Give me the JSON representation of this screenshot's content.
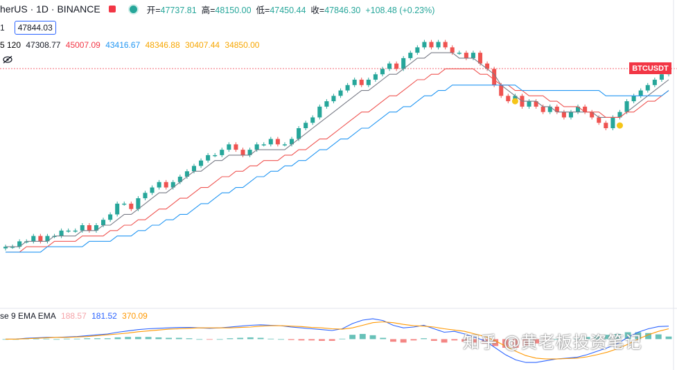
{
  "header": {
    "symbol": "herUS · 1D · BINANCE",
    "ohlc": {
      "open_label": "开=",
      "open": "47737.81",
      "high_label": "高=",
      "high": "48150.00",
      "low_label": "低=",
      "low": "47450.44",
      "close_label": "收=",
      "close": "47846.30",
      "change": "+108.48 (+0.23%)"
    }
  },
  "price_line": {
    "prefix": "1",
    "value": "47844.03"
  },
  "ma_legend": {
    "prefix": "5 120",
    "values": [
      {
        "text": "47308.77",
        "color": "#131722"
      },
      {
        "text": "45007.09",
        "color": "#f23645"
      },
      {
        "text": "43416.67",
        "color": "#2196f3"
      },
      {
        "text": "48346.88",
        "color": "#f7a600"
      },
      {
        "text": "30407.44",
        "color": "#f7a600"
      },
      {
        "text": "34850.00",
        "color": "#f7a600"
      }
    ]
  },
  "macd_legend": {
    "prefix": "se 9 EMA EMA",
    "values": [
      {
        "text": "188.57",
        "color": "#f5a3a8"
      },
      {
        "text": "181.52",
        "color": "#2962ff"
      },
      {
        "text": "370.09",
        "color": "#ff9800"
      }
    ]
  },
  "symbol_tag": "BTCUSDT",
  "watermark": "知乎 @黄老板投资笔记",
  "colors": {
    "up": "#26a69a",
    "down": "#ef5350",
    "ma_short": "#787b86",
    "ma_mid": "#ef5350",
    "ma_long": "#2196f3",
    "macd": "#2962ff",
    "signal": "#ff9800",
    "marker": "#f5c518"
  },
  "chart_data": {
    "type": "line",
    "series": [
      {
        "name": "close",
        "values": [
          30,
          30,
          31,
          31,
          32,
          31,
          32,
          32,
          33,
          33,
          33,
          34,
          33,
          34,
          35,
          36,
          38,
          38,
          37,
          39,
          40,
          41,
          42,
          41,
          42,
          43,
          44,
          45,
          46,
          47,
          47,
          48,
          49,
          48,
          47,
          48,
          49,
          49,
          50,
          49,
          49,
          50,
          52,
          53,
          54,
          56,
          57,
          58,
          59,
          60,
          61,
          60,
          61,
          62,
          63,
          64,
          63,
          65,
          66,
          67,
          68,
          67,
          68,
          67,
          66,
          66,
          65,
          66,
          64,
          63,
          60,
          58,
          57,
          58,
          56,
          57,
          56,
          55,
          56,
          55,
          54,
          55,
          56,
          55,
          54,
          53,
          52,
          54,
          55,
          57,
          58,
          59,
          60,
          61,
          62,
          63
        ]
      },
      {
        "name": "ma_short",
        "values": [
          30,
          30,
          30,
          31,
          31,
          31,
          31,
          32,
          32,
          32,
          32,
          33,
          33,
          33,
          34,
          34,
          35,
          36,
          36,
          37,
          38,
          39,
          40,
          40,
          41,
          42,
          43,
          44,
          44,
          45,
          46,
          46,
          47,
          47,
          47,
          47,
          48,
          48,
          48,
          48,
          48,
          49,
          50,
          51,
          52,
          53,
          54,
          55,
          56,
          57,
          58,
          59,
          59,
          60,
          61,
          62,
          62,
          63,
          64,
          65,
          65,
          66,
          66,
          66,
          66,
          65,
          65,
          65,
          64,
          63,
          62,
          60,
          59,
          58,
          57,
          57,
          57,
          56,
          56,
          55,
          55,
          55,
          55,
          55,
          55,
          54,
          54,
          54,
          54,
          55,
          56,
          57,
          58,
          59,
          60,
          61
        ]
      },
      {
        "name": "ma_mid",
        "values": [
          29,
          29,
          29,
          30,
          30,
          30,
          30,
          31,
          31,
          31,
          31,
          32,
          32,
          32,
          32,
          33,
          33,
          34,
          34,
          35,
          35,
          36,
          37,
          37,
          38,
          39,
          39,
          40,
          41,
          41,
          42,
          43,
          43,
          44,
          44,
          45,
          45,
          46,
          46,
          46,
          47,
          47,
          48,
          48,
          49,
          50,
          50,
          51,
          52,
          53,
          54,
          55,
          55,
          56,
          57,
          58,
          58,
          59,
          60,
          61,
          61,
          62,
          62,
          63,
          63,
          63,
          63,
          63,
          62,
          62,
          61,
          60,
          60,
          59,
          59,
          58,
          58,
          58,
          57,
          57,
          56,
          56,
          56,
          55,
          55,
          55,
          54,
          54,
          54,
          55,
          55,
          56,
          57,
          57,
          58,
          59
        ]
      },
      {
        "name": "ma_long",
        "values": [
          29,
          29,
          29,
          29,
          29,
          29,
          30,
          30,
          30,
          30,
          30,
          30,
          31,
          31,
          31,
          31,
          32,
          32,
          32,
          33,
          33,
          34,
          34,
          35,
          35,
          36,
          36,
          37,
          38,
          38,
          39,
          40,
          40,
          41,
          41,
          42,
          43,
          43,
          44,
          44,
          45,
          45,
          46,
          46,
          47,
          48,
          48,
          49,
          50,
          50,
          51,
          52,
          52,
          53,
          54,
          55,
          55,
          56,
          56,
          57,
          58,
          58,
          59,
          59,
          60,
          60,
          60,
          60,
          60,
          60,
          60,
          60,
          60,
          60,
          59,
          59,
          59,
          59,
          59,
          59,
          59,
          59,
          59,
          59,
          59,
          59,
          58,
          58,
          58,
          58,
          58,
          58,
          58,
          58,
          58,
          59
        ]
      }
    ],
    "ylim": [
      25,
      70
    ],
    "grid": false,
    "markers": [
      {
        "index": 73,
        "y": 57
      },
      {
        "index": 88,
        "y": 52.5
      }
    ],
    "macd": {
      "macd": [
        0,
        0,
        0.2,
        0.3,
        0.4,
        0.4,
        0.5,
        0.6,
        0.8,
        1,
        1.2,
        1.6,
        1.9,
        2.2,
        2.4,
        2.5,
        2.6,
        2.7,
        2.7,
        2.6,
        2.5,
        2.6,
        2.8,
        3,
        3.2,
        3.3,
        3.2,
        3.1,
        2.8,
        2.6,
        2.4,
        2.2,
        2,
        2.4,
        3.6,
        4.4,
        4.7,
        4.3,
        3.2,
        2.6,
        2.8,
        3.2,
        2.4,
        1.6,
        1.8,
        1.2,
        0.4,
        -0.4,
        -2,
        -3.6,
        -4.8,
        -5.4,
        -5.4,
        -5,
        -4.6,
        -4.4,
        -4.2,
        -3.6,
        -2.8,
        -2,
        -1,
        0.4,
        1.6,
        2.4,
        2.9,
        3
      ],
      "signal": [
        0,
        0,
        0.1,
        0.2,
        0.3,
        0.4,
        0.4,
        0.5,
        0.6,
        0.8,
        1,
        1.2,
        1.4,
        1.7,
        1.9,
        2.1,
        2.3,
        2.4,
        2.5,
        2.6,
        2.6,
        2.6,
        2.6,
        2.7,
        2.8,
        3,
        3.1,
        3.1,
        3,
        2.9,
        2.7,
        2.6,
        2.4,
        2.3,
        2.6,
        3.2,
        3.8,
        4,
        3.8,
        3.4,
        3.1,
        3,
        2.8,
        2.4,
        2.1,
        1.8,
        1.2,
        0.6,
        -0.4,
        -1.6,
        -2.8,
        -3.8,
        -4.4,
        -4.6,
        -4.6,
        -4.5,
        -4.4,
        -4.1,
        -3.6,
        -3,
        -2.2,
        -1.2,
        0,
        1,
        1.8,
        2.4
      ],
      "ylim": [
        -6.5,
        6
      ]
    }
  }
}
